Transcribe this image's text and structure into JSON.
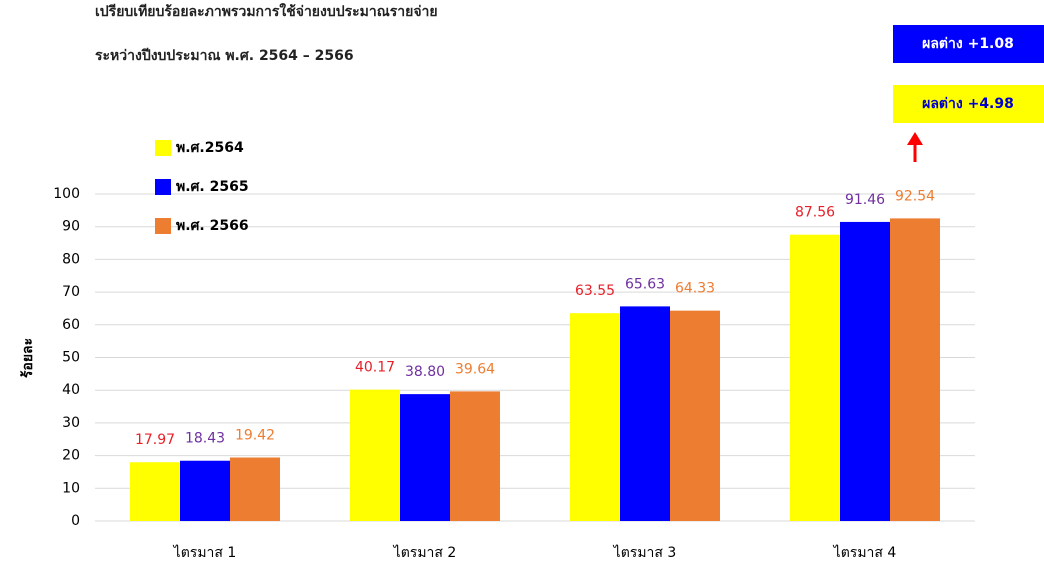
{
  "chart_data": {
    "type": "bar",
    "title": "เปรียบเทียบร้อยละภาพรวมการใช้จ่ายงบประมาณรายจ่าย",
    "subtitle": "ระหว่างปีงบประมาณ พ.ศ. 2564 – 2566",
    "y_label": "ร้อยละ",
    "categories": [
      "ไตรมาส 1",
      "ไตรมาส 2",
      "ไตรมาส 3",
      "ไตรมาส 4"
    ],
    "series": [
      {
        "name": "พ.ศ.2564",
        "color": "#ffff00",
        "label_color": "#e8202a",
        "values": [
          17.97,
          40.17,
          63.55,
          87.56
        ],
        "value_labels": [
          "17.97",
          "40.17",
          "63.55",
          "87.56"
        ]
      },
      {
        "name": "พ.ศ. 2565",
        "color": "#0000ff",
        "label_color": "#7030a0",
        "values": [
          18.43,
          38.8,
          65.63,
          91.46
        ],
        "value_labels": [
          "18.43",
          "38.80",
          "65.63",
          "91.46"
        ]
      },
      {
        "name": "พ.ศ. 2566",
        "color": "#ed7d31",
        "label_color": "#ed7d31",
        "values": [
          19.42,
          39.64,
          64.33,
          92.54
        ],
        "value_labels": [
          "19.42",
          "39.64",
          "64.33",
          "92.54"
        ]
      }
    ],
    "ylim": [
      0,
      100
    ],
    "yticks": [
      0,
      10,
      20,
      30,
      40,
      50,
      60,
      70,
      80,
      90,
      100
    ],
    "grid": true,
    "legend": "top-left",
    "annotations": [
      "ผลต่าง +1.08",
      "ผลต่าง +4.98"
    ]
  }
}
